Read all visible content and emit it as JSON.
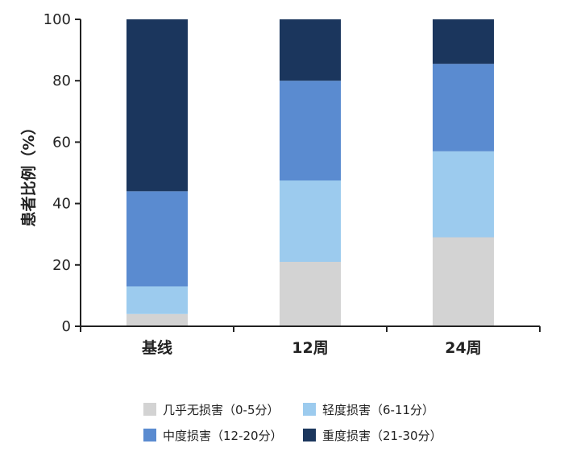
{
  "chart_data": {
    "type": "bar",
    "stacked": true,
    "categories": [
      "基线",
      "12周",
      "24周"
    ],
    "series": [
      {
        "name": "几乎无损害（0-5分）",
        "color": "#d3d3d3",
        "values": [
          4,
          21,
          29
        ]
      },
      {
        "name": "轻度损害（6-11分）",
        "color": "#9ccbee",
        "values": [
          9,
          26.5,
          28
        ]
      },
      {
        "name": "中度损害（12-20分）",
        "color": "#5a8bd0",
        "values": [
          31,
          32.5,
          28.5
        ]
      },
      {
        "name": "重度损害（21-30分）",
        "color": "#1b365d",
        "values": [
          56,
          20,
          14.5
        ]
      }
    ],
    "ylabel": "患者比例（%）",
    "ylim": [
      0,
      100
    ],
    "yticks": [
      0,
      20,
      40,
      60,
      80,
      100
    ],
    "grid": false,
    "legend_position": "bottom"
  }
}
